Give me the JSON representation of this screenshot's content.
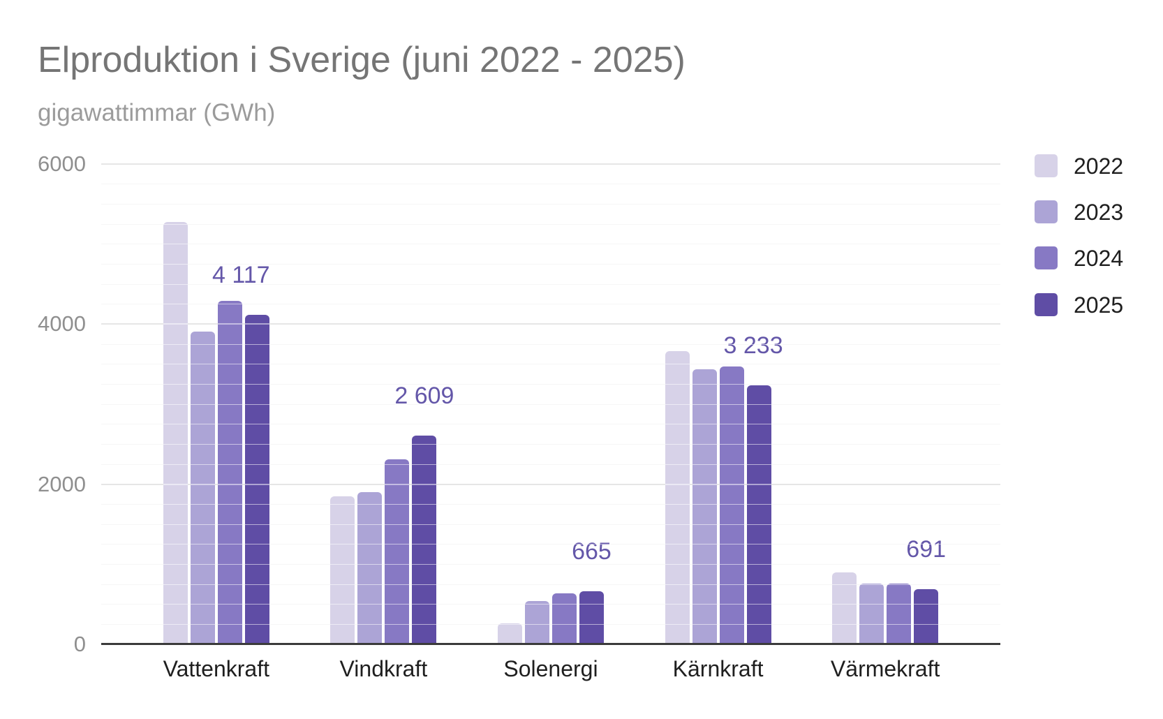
{
  "chart_data": {
    "type": "bar",
    "title": "Elproduktion i Sverige (juni 2022 - 2025)",
    "subtitle": "gigawattimmar (GWh)",
    "categories": [
      "Vattenkraft",
      "Vindkraft",
      "Solenergi",
      "Kärnkraft",
      "Värmekraft"
    ],
    "series": [
      {
        "name": "2022",
        "color": "#d7d2e8",
        "values": [
          5280,
          1845,
          265,
          3660,
          900
        ]
      },
      {
        "name": "2023",
        "color": "#aca4d6",
        "values": [
          3910,
          1900,
          540,
          3440,
          755
        ]
      },
      {
        "name": "2024",
        "color": "#8779c4",
        "values": [
          4290,
          2310,
          640,
          3470,
          760
        ]
      },
      {
        "name": "2025",
        "color": "#5f4da5",
        "values": [
          4117,
          2609,
          665,
          3233,
          691
        ],
        "data_labels": [
          "4 117",
          "2 609",
          "665",
          "3 233",
          "691"
        ],
        "data_label_dx": [
          -23,
          0,
          0,
          -8,
          0
        ]
      }
    ],
    "ylim": [
      0,
      6000
    ],
    "yticks": [
      "0",
      "2000",
      "4000",
      "6000"
    ],
    "minor_gridline_step": 250,
    "grid": "on",
    "legend_position": "right",
    "colors": {
      "data_label": "#6457a9",
      "title": "#757575",
      "subtitle": "#9b9b9b",
      "axis_text": "#8f8f8f",
      "category_text": "#1f1f1f",
      "legend_text": "#1f1f1f",
      "gridline_minor": "#eaeaea",
      "gridline_major": "#cdcdcd",
      "baseline": "#3b3b3b"
    }
  }
}
